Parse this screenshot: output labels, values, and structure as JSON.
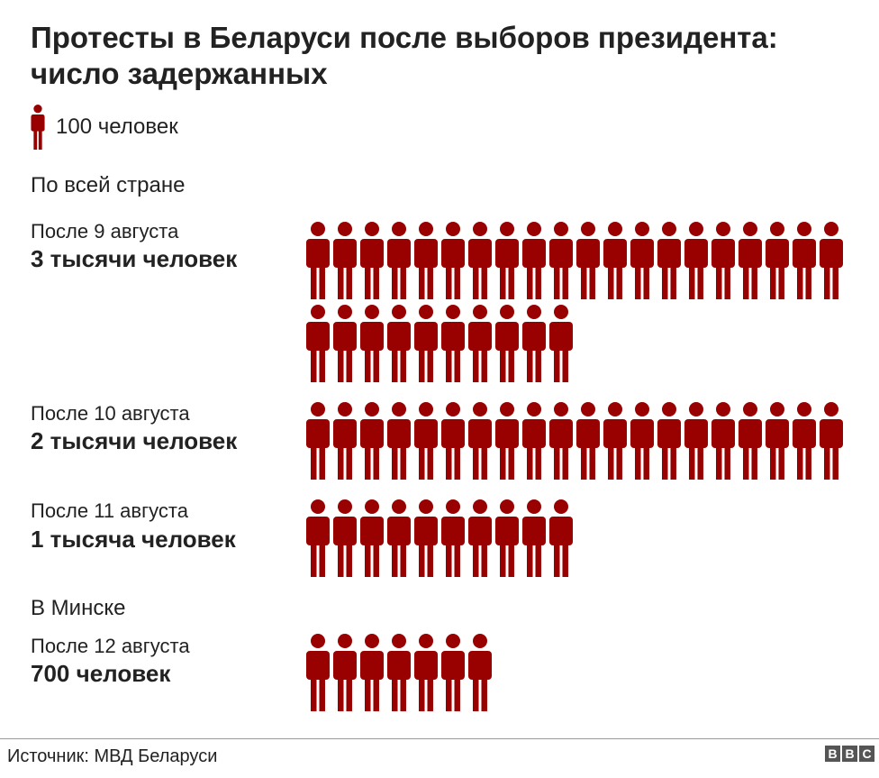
{
  "title": "Протесты в Беларуси после выборов президента: число задержанных",
  "legend": {
    "icon": "person-icon",
    "label": "100 человек",
    "unit_people": 100
  },
  "icon_color": "#990000",
  "sections": {
    "country": "По всей стране",
    "minsk": "В Минске"
  },
  "chart_data": {
    "type": "pictogram",
    "unit": 100,
    "rows": [
      {
        "label": "После 9 августа",
        "value_label": "3 тысячи человек",
        "value": 3000,
        "icons": 30
      },
      {
        "label": "После 10 августа",
        "value_label": "2 тысячи человек",
        "value": 2000,
        "icons": 20
      },
      {
        "label": "После 11 августа",
        "value_label": "1 тысяча человек",
        "value": 1000,
        "icons": 10
      },
      {
        "label": "После 12 августа",
        "value_label": "700 человек",
        "value": 700,
        "icons": 7
      }
    ]
  },
  "footer": {
    "source": "Источник: МВД Беларуси",
    "logo": [
      "B",
      "B",
      "C"
    ]
  }
}
